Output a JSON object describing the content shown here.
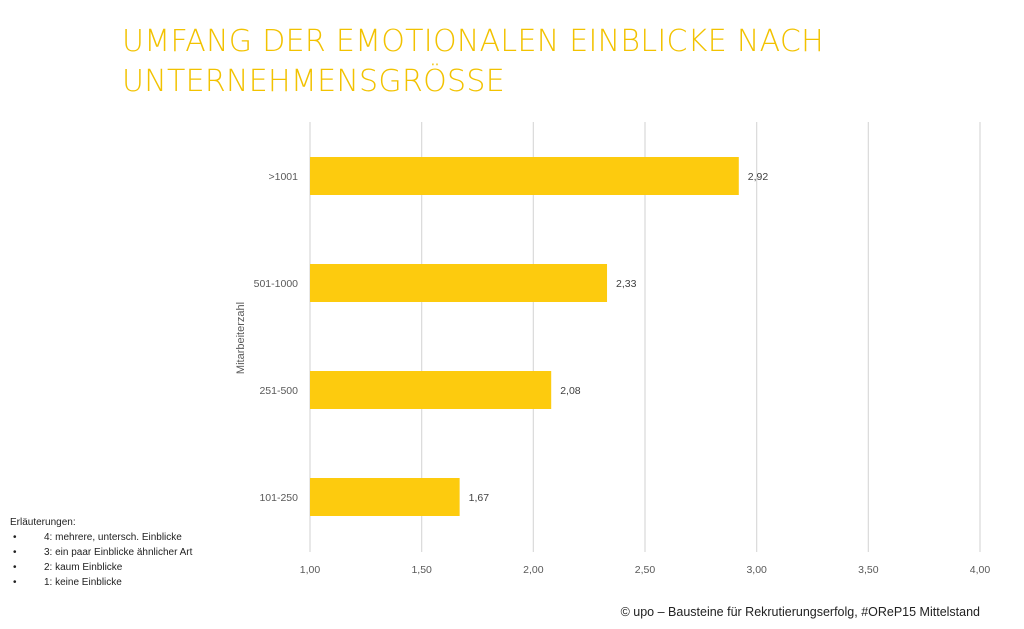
{
  "title": {
    "line1": "UMFANG DER EMOTIONALEN EINBLICKE NACH",
    "line2": "UNTERNEHMENSGRÖSSE"
  },
  "chart_data": {
    "type": "bar",
    "orientation": "horizontal",
    "categories": [
      "101-250",
      "251-500",
      "501-1000",
      ">1001"
    ],
    "values": [
      1.67,
      2.08,
      2.33,
      2.92
    ],
    "value_labels": [
      "1,67",
      "2,08",
      "2,33",
      "2,92"
    ],
    "xlim": [
      1.0,
      4.0
    ],
    "x_ticks": [
      1.0,
      1.5,
      2.0,
      2.5,
      3.0,
      3.5,
      4.0
    ],
    "x_tick_labels": [
      "1,00",
      "1,50",
      "2,00",
      "2,50",
      "3,00",
      "3,50",
      "4,00"
    ],
    "ylabel": "Mitarbeiterzahl",
    "xlabel": "",
    "grid": true,
    "bar_color": "#fdcb0e",
    "grid_color": "#d9d9d9"
  },
  "notes": {
    "heading": "Erläuterungen:",
    "items": [
      "4: mehrere, untersch. Einblicke",
      "3: ein paar Einblicke ähnlicher Art",
      "2: kaum Einblicke",
      "1: keine Einblicke"
    ]
  },
  "footer": "© upo – Bausteine für Rekrutierungserfolg, #OReP15 Mittelstand"
}
